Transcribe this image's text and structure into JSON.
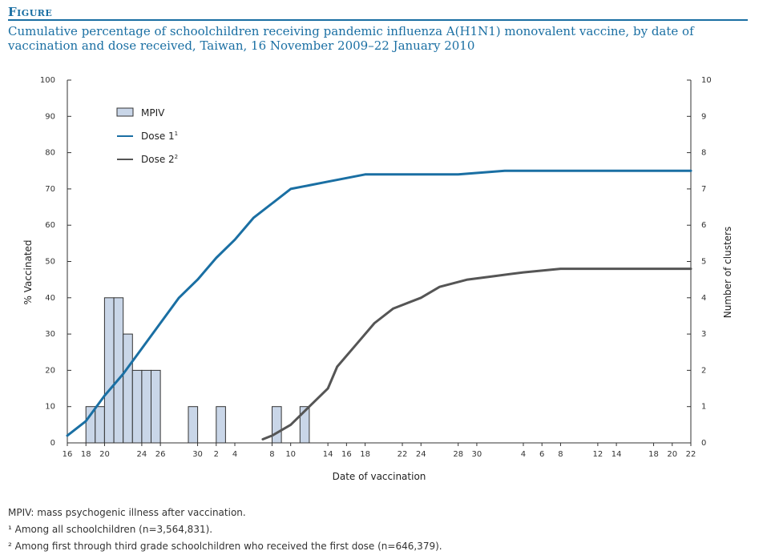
{
  "figure_label": "Figure",
  "title": "Cumulative percentage of schoolchildren receiving pandemic influenza A(H1N1) monovalent vaccine, by date of vaccination and dose received, Taiwan, 16 November 2009–22 January 2010",
  "footnotes": [
    "MPIV: mass psychogenic illness after vaccination.",
    "¹ Among all schoolchildren (n=3,564,831).",
    "² Among first through third grade schoolchildren who received the first dose (n=646,379)."
  ],
  "colors": {
    "title": "#1a6fa3",
    "dose1": "#1a6fa3",
    "dose2": "#555555",
    "bar_fill": "#c9d6e8",
    "bar_stroke": "#333333"
  },
  "chart_data": {
    "type": "bar+line",
    "xlabel": "Date of vaccination",
    "ylabel_left": "% Vaccinated",
    "ylabel_right": "Number of clusters",
    "ylim_left": [
      0,
      100
    ],
    "ylim_right": [
      0,
      10
    ],
    "yticks_left": [
      "0",
      "10",
      "20",
      "30",
      "40",
      "50",
      "60",
      "70",
      "80",
      "90",
      "100"
    ],
    "yticks_right": [
      "0",
      "1",
      "2",
      "3",
      "4",
      "5",
      "6",
      "7",
      "8",
      "9",
      "10"
    ],
    "x_range": [
      "2009-11-16",
      "2010-01-22"
    ],
    "x_ticks": [
      {
        "date": "2009-11-16",
        "label": "16"
      },
      {
        "date": "2009-11-18",
        "label": "18"
      },
      {
        "date": "2009-11-20",
        "label": "20"
      },
      {
        "date": "2009-11-24",
        "label": "24"
      },
      {
        "date": "2009-11-26",
        "label": "26"
      },
      {
        "date": "2009-11-30",
        "label": "30"
      },
      {
        "date": "2009-12-02",
        "label": "2"
      },
      {
        "date": "2009-12-04",
        "label": "4"
      },
      {
        "date": "2009-12-08",
        "label": "8"
      },
      {
        "date": "2009-12-10",
        "label": "10"
      },
      {
        "date": "2009-12-14",
        "label": "14"
      },
      {
        "date": "2009-12-16",
        "label": "16"
      },
      {
        "date": "2009-12-18",
        "label": "18"
      },
      {
        "date": "2009-12-22",
        "label": "22"
      },
      {
        "date": "2009-12-24",
        "label": "24"
      },
      {
        "date": "2009-12-28",
        "label": "28"
      },
      {
        "date": "2009-12-30",
        "label": "30"
      },
      {
        "date": "2010-01-04",
        "label": "4"
      },
      {
        "date": "2010-01-06",
        "label": "6"
      },
      {
        "date": "2010-01-08",
        "label": "8"
      },
      {
        "date": "2010-01-12",
        "label": "12"
      },
      {
        "date": "2010-01-14",
        "label": "14"
      },
      {
        "date": "2010-01-18",
        "label": "18"
      },
      {
        "date": "2010-01-20",
        "label": "20"
      },
      {
        "date": "2010-01-22",
        "label": "22"
      }
    ],
    "legend": [
      {
        "label": "MPIV",
        "kind": "bar"
      },
      {
        "label": "Dose 1",
        "sup": "1",
        "kind": "line",
        "color": "#1a6fa3"
      },
      {
        "label": "Dose 2",
        "sup": "2",
        "kind": "line",
        "color": "#555555"
      }
    ],
    "bars": {
      "name": "MPIV",
      "axis": "right",
      "points": [
        {
          "date": "2009-11-18",
          "value": 1
        },
        {
          "date": "2009-11-19",
          "value": 1
        },
        {
          "date": "2009-11-20",
          "value": 4
        },
        {
          "date": "2009-11-21",
          "value": 4
        },
        {
          "date": "2009-11-22",
          "value": 3
        },
        {
          "date": "2009-11-23",
          "value": 2
        },
        {
          "date": "2009-11-24",
          "value": 2
        },
        {
          "date": "2009-11-25",
          "value": 2
        },
        {
          "date": "2009-11-29",
          "value": 1
        },
        {
          "date": "2009-12-02",
          "value": 1
        },
        {
          "date": "2009-12-08",
          "value": 1
        },
        {
          "date": "2009-12-11",
          "value": 1
        }
      ]
    },
    "series": [
      {
        "name": "Dose 1",
        "axis": "left",
        "points": [
          [
            "2009-11-16",
            2
          ],
          [
            "2009-11-18",
            6
          ],
          [
            "2009-11-20",
            13
          ],
          [
            "2009-11-22",
            19
          ],
          [
            "2009-11-24",
            26
          ],
          [
            "2009-11-26",
            33
          ],
          [
            "2009-11-28",
            40
          ],
          [
            "2009-11-30",
            45
          ],
          [
            "2009-12-02",
            51
          ],
          [
            "2009-12-04",
            56
          ],
          [
            "2009-12-06",
            62
          ],
          [
            "2009-12-08",
            66
          ],
          [
            "2009-12-10",
            70
          ],
          [
            "2009-12-12",
            71
          ],
          [
            "2009-12-14",
            72
          ],
          [
            "2009-12-16",
            73
          ],
          [
            "2009-12-18",
            74
          ],
          [
            "2009-12-22",
            74
          ],
          [
            "2009-12-28",
            74
          ],
          [
            "2010-01-02",
            75
          ],
          [
            "2010-01-08",
            75
          ],
          [
            "2010-01-15",
            75
          ],
          [
            "2010-01-22",
            75
          ]
        ]
      },
      {
        "name": "Dose 2",
        "axis": "left",
        "points": [
          [
            "2009-12-07",
            1
          ],
          [
            "2009-12-08",
            2
          ],
          [
            "2009-12-10",
            5
          ],
          [
            "2009-12-12",
            10
          ],
          [
            "2009-12-14",
            15
          ],
          [
            "2009-12-15",
            21
          ],
          [
            "2009-12-17",
            27
          ],
          [
            "2009-12-19",
            33
          ],
          [
            "2009-12-21",
            37
          ],
          [
            "2009-12-24",
            40
          ],
          [
            "2009-12-26",
            43
          ],
          [
            "2009-12-29",
            45
          ],
          [
            "2010-01-01",
            46
          ],
          [
            "2010-01-04",
            47
          ],
          [
            "2010-01-08",
            48
          ],
          [
            "2010-01-14",
            48
          ],
          [
            "2010-01-22",
            48
          ]
        ]
      }
    ]
  }
}
